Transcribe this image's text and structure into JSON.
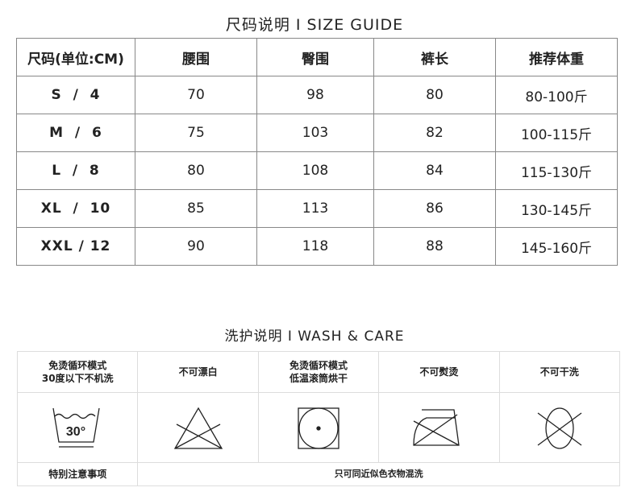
{
  "size_guide": {
    "title": "尺码说明 I SIZE GUIDE",
    "headers": [
      "尺码(单位:CM)",
      "腰围",
      "臀围",
      "裤长",
      "推荐体重"
    ],
    "rows": [
      [
        "S  /  4",
        "70",
        "98",
        "80",
        "80-100斤"
      ],
      [
        "M  /  6",
        "75",
        "103",
        "82",
        "100-115斤"
      ],
      [
        "L  /  8",
        "80",
        "108",
        "84",
        "115-130斤"
      ],
      [
        "XL  /  10",
        "85",
        "113",
        "86",
        "130-145斤"
      ],
      [
        "XXL / 12",
        "90",
        "118",
        "88",
        "145-160斤"
      ]
    ]
  },
  "wash_care": {
    "title": "洗护说明 I WASH  & CARE",
    "items": [
      {
        "line1": "免烫循环模式",
        "line2": "30度以下不机洗",
        "icon": "hand-wash-30-icon",
        "icon_text": "30°"
      },
      {
        "line1": "不可漂白",
        "line2": "",
        "icon": "no-bleach-icon"
      },
      {
        "line1": "免烫循环模式",
        "line2": "低温滚筒烘干",
        "icon": "tumble-dry-low-icon"
      },
      {
        "line1": "不可熨烫",
        "line2": "",
        "icon": "no-iron-icon"
      },
      {
        "line1": "不可干洗",
        "line2": "",
        "icon": "no-dry-clean-icon"
      }
    ],
    "note_label": "特别注意事项",
    "note_text": "只可同近似色衣物混洗"
  }
}
